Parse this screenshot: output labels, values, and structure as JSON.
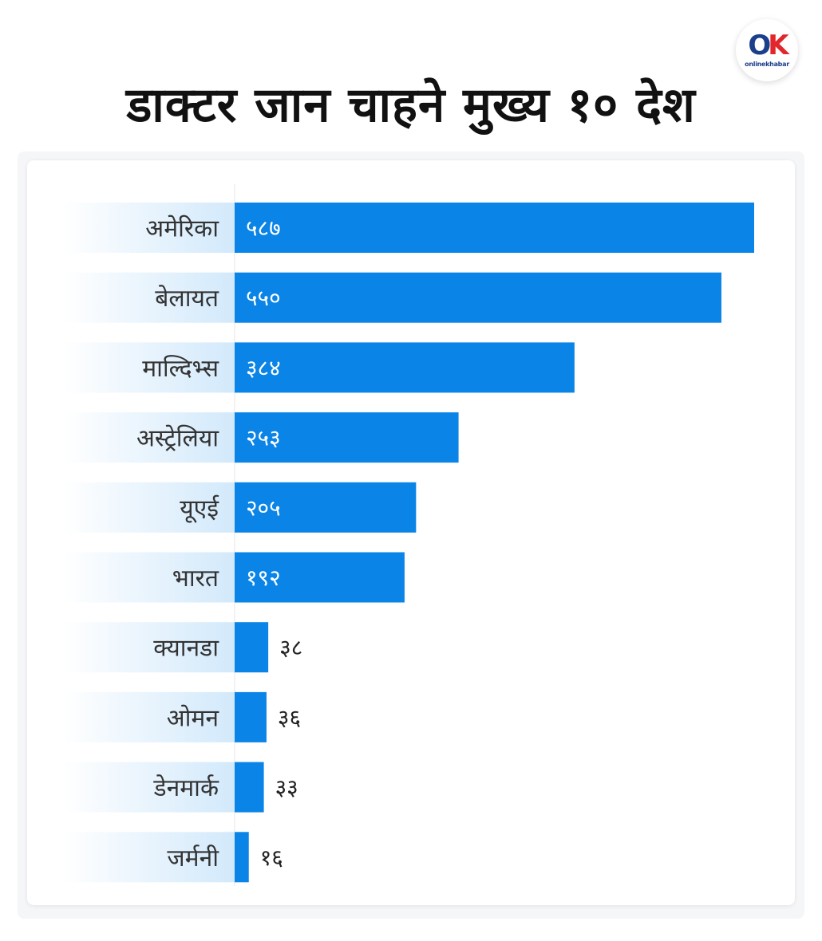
{
  "header": {
    "title": "डाक्टर जान चाहने मुख्य १० देश",
    "logo_text": "onlinekhabar"
  },
  "colors": {
    "bar": "#0a84e6",
    "label_band": "#d2e9fb"
  },
  "chart_data": {
    "type": "bar",
    "orientation": "horizontal",
    "title": "डाक्टर जान चाहने मुख्य १० देश",
    "categories": [
      "अमेरिका",
      "बेलायत",
      "माल्दिभ्स",
      "अस्ट्रेलिया",
      "यूएई",
      "भारत",
      "क्यानडा",
      "ओमन",
      "डेनमार्क",
      "जर्मनी"
    ],
    "values": [
      587,
      550,
      384,
      253,
      205,
      192,
      38,
      36,
      33,
      16
    ],
    "value_labels": [
      "५८७",
      "५५०",
      "३८४",
      "२५३",
      "२०५",
      "१९२",
      "३८",
      "३६",
      "३३",
      "१६"
    ],
    "xlim": [
      0,
      587
    ],
    "grid": false,
    "legend": "none"
  }
}
